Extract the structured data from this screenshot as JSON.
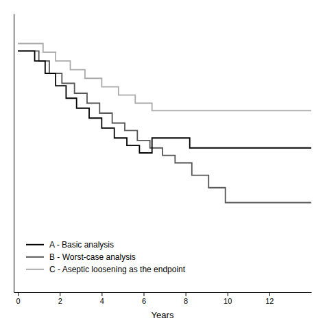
{
  "chart_data": {
    "type": "line",
    "line_style": "step",
    "xlabel": "Years",
    "xlim": [
      -0.2,
      14
    ],
    "xticks": [
      0,
      2,
      4,
      6,
      8,
      10,
      12
    ],
    "ylim": [
      0,
      1.12
    ],
    "yticks": [],
    "tick_labels": "x",
    "legend": "lower left",
    "series": [
      {
        "name": "A - Basic analysis",
        "color": "#000000",
        "x": [
          0,
          0.8,
          0.8,
          1.3,
          1.3,
          1.8,
          1.8,
          2.3,
          2.3,
          2.8,
          2.8,
          3.4,
          3.4,
          4.0,
          4.0,
          4.6,
          4.6,
          5.2,
          5.2,
          5.8,
          5.8,
          6.4,
          6.4,
          7.5,
          7.5,
          8.2,
          8.2,
          9.0,
          9.0,
          14.0
        ],
        "values": [
          0.97,
          0.97,
          0.93,
          0.93,
          0.88,
          0.88,
          0.83,
          0.83,
          0.78,
          0.78,
          0.74,
          0.74,
          0.7,
          0.7,
          0.66,
          0.66,
          0.62,
          0.62,
          0.59,
          0.59,
          0.56,
          0.56,
          0.62,
          0.62,
          0.62,
          0.62,
          0.58,
          0.58,
          0.58,
          0.58
        ]
      },
      {
        "name": "B - Worst-case analysis",
        "color": "#555555",
        "x": [
          0,
          1.0,
          1.0,
          1.5,
          1.5,
          2.1,
          2.1,
          2.7,
          2.7,
          3.3,
          3.3,
          3.9,
          3.9,
          4.5,
          4.5,
          5.1,
          5.1,
          5.7,
          5.7,
          6.3,
          6.3,
          6.9,
          6.9,
          7.5,
          7.5,
          8.3,
          8.3,
          9.1,
          9.1,
          9.9,
          9.9,
          13.0,
          13.0,
          14.0
        ],
        "values": [
          0.97,
          0.97,
          0.93,
          0.93,
          0.88,
          0.88,
          0.84,
          0.84,
          0.8,
          0.8,
          0.76,
          0.76,
          0.72,
          0.72,
          0.68,
          0.68,
          0.65,
          0.65,
          0.61,
          0.61,
          0.58,
          0.58,
          0.55,
          0.55,
          0.52,
          0.52,
          0.47,
          0.47,
          0.42,
          0.42,
          0.36,
          0.36,
          0.36,
          0.36
        ]
      },
      {
        "name": "C - Aseptic loosening as the endpoint",
        "color": "#aaaaaa",
        "x": [
          0,
          1.2,
          1.2,
          1.8,
          1.8,
          2.5,
          2.5,
          3.2,
          3.2,
          4.0,
          4.0,
          4.8,
          4.8,
          5.6,
          5.6,
          6.4,
          6.4,
          7.5,
          7.5,
          14.0
        ],
        "values": [
          1.0,
          1.0,
          0.965,
          0.965,
          0.93,
          0.93,
          0.895,
          0.895,
          0.86,
          0.86,
          0.826,
          0.826,
          0.793,
          0.793,
          0.76,
          0.76,
          0.73,
          0.73,
          0.73,
          0.73
        ]
      }
    ]
  }
}
